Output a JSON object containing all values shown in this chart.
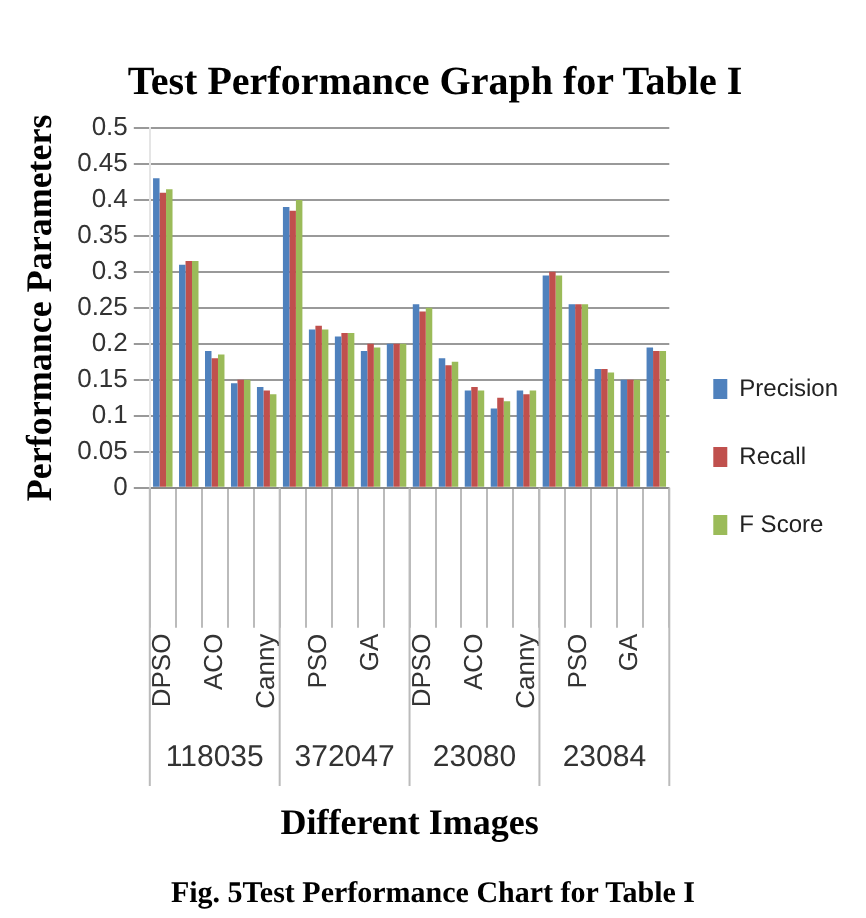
{
  "chart_data": {
    "type": "bar",
    "title": "Test Performance Graph for Table I",
    "xlabel": "Different Images",
    "ylabel": "Performance Parameters",
    "categories": [
      "DPSO",
      null,
      "ACO",
      null,
      "Canny",
      null,
      "PSO",
      null,
      "GA",
      null,
      "DPSO",
      null,
      "ACO",
      null,
      "Canny",
      null,
      "PSO",
      null,
      "GA",
      null
    ],
    "series": [
      {
        "name": "Precision",
        "color": "#4f81bd",
        "values": [
          0.43,
          0.31,
          0.19,
          0.145,
          0.14,
          0.39,
          0.22,
          0.21,
          0.19,
          0.2,
          0.255,
          0.18,
          0.135,
          0.11,
          0.135,
          0.295,
          0.255,
          0.165,
          0.15,
          0.195
        ]
      },
      {
        "name": "Recall",
        "color": "#c0504d",
        "values": [
          0.41,
          0.315,
          0.18,
          0.15,
          0.135,
          0.385,
          0.225,
          0.215,
          0.2,
          0.2,
          0.245,
          0.17,
          0.14,
          0.125,
          0.13,
          0.3,
          0.255,
          0.165,
          0.15,
          0.19
        ]
      },
      {
        "name": "F Score",
        "color": "#9bbb59",
        "values": [
          0.415,
          0.315,
          0.185,
          0.15,
          0.13,
          0.4,
          0.22,
          0.215,
          0.195,
          0.2,
          0.25,
          0.175,
          0.135,
          0.12,
          0.135,
          0.295,
          0.255,
          0.16,
          0.15,
          0.19
        ]
      }
    ],
    "ylim": [
      0,
      0.5
    ],
    "yticks": [
      0,
      0.05,
      0.1,
      0.15,
      0.2,
      0.25,
      0.3,
      0.35,
      0.4,
      0.45,
      0.5
    ],
    "grid": "y",
    "legend": "right",
    "annotations": [
      "118035",
      "372047",
      "23080",
      "23084",
      "Fig. 5Test Performance Chart for Table I"
    ]
  }
}
